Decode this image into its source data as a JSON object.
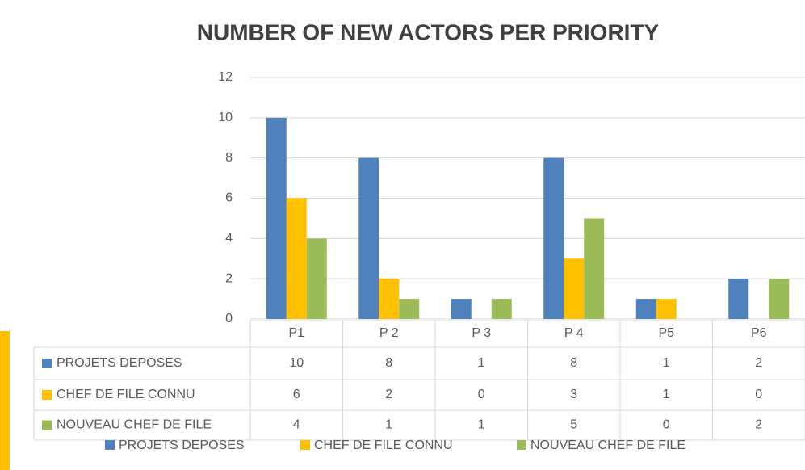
{
  "chart_data": {
    "type": "bar",
    "title": "NUMBER OF NEW ACTORS PER PRIORITY",
    "categories": [
      "P1",
      "P 2",
      "P 3",
      "P 4",
      "P5",
      "P6"
    ],
    "series": [
      {
        "name": "PROJETS DEPOSES",
        "color": "#4f81bd",
        "values": [
          10,
          8,
          1,
          8,
          1,
          2
        ]
      },
      {
        "name": "CHEF DE FILE CONNU",
        "color": "#ffc000",
        "values": [
          6,
          2,
          0,
          3,
          1,
          0
        ]
      },
      {
        "name": "NOUVEAU CHEF DE FILE",
        "color": "#9bbb59",
        "values": [
          4,
          1,
          1,
          5,
          0,
          2
        ]
      }
    ],
    "ylim": [
      0,
      12
    ],
    "yticks": [
      0,
      2,
      4,
      6,
      8,
      10,
      12
    ],
    "grid": true,
    "legend": "bottom"
  }
}
